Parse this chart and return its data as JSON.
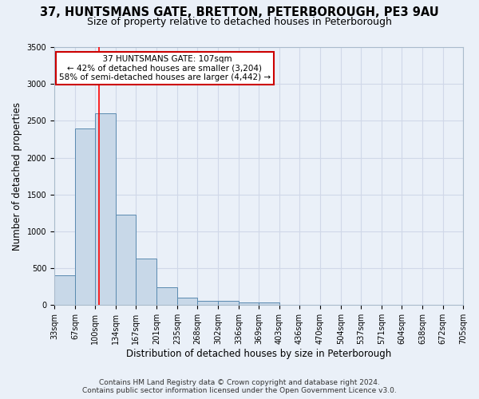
{
  "title": "37, HUNTSMANS GATE, BRETTON, PETERBOROUGH, PE3 9AU",
  "subtitle": "Size of property relative to detached houses in Peterborough",
  "xlabel": "Distribution of detached houses by size in Peterborough",
  "ylabel": "Number of detached properties",
  "footer": "Contains HM Land Registry data © Crown copyright and database right 2024.\nContains public sector information licensed under the Open Government Licence v3.0.",
  "bin_edges": [
    33,
    67,
    100,
    134,
    167,
    201,
    235,
    268,
    302,
    336,
    369,
    403,
    436,
    470,
    504,
    537,
    571,
    604,
    638,
    672,
    705
  ],
  "bar_heights": [
    400,
    2400,
    2600,
    1230,
    630,
    240,
    100,
    60,
    60,
    35,
    35,
    0,
    0,
    0,
    0,
    0,
    0,
    0,
    0,
    0
  ],
  "bar_color": "#c8d8e8",
  "bar_edge_color": "#5a8ab0",
  "grid_color": "#d0d8e8",
  "background_color": "#eaf0f8",
  "red_line_x": 107,
  "annotation_text": "  37 HUNTSMANS GATE: 107sqm\n← 42% of detached houses are smaller (3,204)\n58% of semi-detached houses are larger (4,442) →",
  "annotation_box_color": "#ffffff",
  "annotation_border_color": "#cc0000",
  "ylim": [
    0,
    3500
  ],
  "xlim": [
    33,
    705
  ],
  "title_fontsize": 10.5,
  "subtitle_fontsize": 9,
  "tick_label_fontsize": 7,
  "ylabel_fontsize": 8.5,
  "xlabel_fontsize": 8.5,
  "footer_fontsize": 6.5,
  "annotation_fontsize": 7.5
}
